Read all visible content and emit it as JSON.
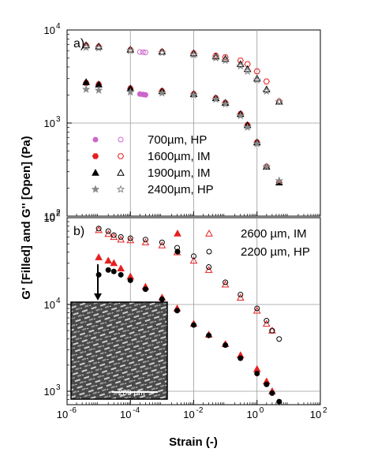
{
  "chart_data": [
    {
      "type": "scatter",
      "panel_label": "a)",
      "x_scale": "log",
      "y_scale": "log",
      "xlim": [
        1e-06,
        100
      ],
      "ylim": [
        100,
        10000
      ],
      "grid": true,
      "legend_position": "bottom-left",
      "series": [
        {
          "name": "700µm, HP",
          "color": "#cc66cc",
          "x": [
            0.0002,
            0.00025,
            0.0003
          ],
          "G_filled": [
            2050,
            2030,
            2010
          ],
          "G_open": [
            5800,
            5780,
            5750
          ]
        },
        {
          "name": "1600µm, IM",
          "color": "#e62020",
          "x": [
            4e-06,
            1e-05,
            0.0001,
            0.001,
            0.01,
            0.05,
            0.1,
            0.3,
            0.5,
            1,
            2,
            5
          ],
          "G_filled": [
            2700,
            2600,
            2350,
            2200,
            2050,
            1850,
            1650,
            1250,
            950,
            620,
            340,
            230
          ],
          "G_open": [
            6800,
            6600,
            6100,
            5800,
            5600,
            5300,
            5100,
            4700,
            4300,
            3600,
            2800,
            1700
          ]
        },
        {
          "name": "1900µm, IM",
          "color": "#000000",
          "x": [
            4e-06,
            1e-05,
            0.0001,
            0.001,
            0.01,
            0.05,
            0.1,
            0.3,
            0.5,
            1,
            2,
            5
          ],
          "G_filled": [
            2750,
            2600,
            2350,
            2200,
            2050,
            1850,
            1650,
            1250,
            950,
            620,
            340,
            230
          ],
          "G_open": [
            6850,
            6650,
            6150,
            5850,
            5600,
            5200,
            4900,
            4300,
            3800,
            3000,
            2300,
            1700
          ]
        },
        {
          "name": "2400µm, HP",
          "color": "#888888",
          "x": [
            4e-06,
            1e-05,
            0.0001,
            0.001,
            0.01,
            0.05,
            0.1,
            0.3,
            0.5,
            1,
            2,
            5
          ],
          "G_filled": [
            2300,
            2250,
            2150,
            2100,
            2000,
            1800,
            1600,
            1200,
            900,
            600,
            340,
            240
          ],
          "G_open": [
            6500,
            6400,
            6000,
            5700,
            5400,
            5000,
            4700,
            4100,
            3600,
            2900,
            2200,
            1700
          ]
        }
      ]
    },
    {
      "type": "scatter",
      "panel_label": "b)",
      "x_scale": "log",
      "y_scale": "log",
      "xlim": [
        1e-06,
        100
      ],
      "ylim": [
        700,
        100000
      ],
      "grid": true,
      "legend_position": "top-right",
      "xlabel": "Strain (-)",
      "series": [
        {
          "name": "2600 µm, IM",
          "color": "#e62020",
          "x": [
            1e-05,
            2e-05,
            3e-05,
            5e-05,
            0.0001,
            0.0003,
            0.001,
            0.003,
            0.01,
            0.03,
            0.1,
            0.3,
            1,
            2,
            3
          ],
          "G_filled": [
            35000,
            32000,
            30000,
            26000,
            21000,
            16000,
            12000,
            9000,
            6000,
            4500,
            3500,
            2600,
            1800,
            1300,
            1000
          ],
          "G_open": [
            72000,
            65000,
            60000,
            56000,
            55000,
            52000,
            48000,
            40000,
            32000,
            25000,
            17000,
            12000,
            8500,
            6000,
            5000
          ]
        },
        {
          "name": "2200 µm, HP",
          "color": "#000000",
          "x": [
            1e-05,
            2e-05,
            3e-05,
            5e-05,
            0.0001,
            0.0003,
            0.001,
            0.003,
            0.01,
            0.03,
            0.1,
            0.3,
            1,
            2,
            3,
            5
          ],
          "G_filled": [
            22000,
            25000,
            24000,
            22000,
            19000,
            15000,
            11500,
            8500,
            5800,
            4400,
            3400,
            2400,
            1600,
            1200,
            950,
            760
          ],
          "G_open": [
            75000,
            70000,
            63000,
            60000,
            58000,
            56000,
            52000,
            45000,
            36000,
            27000,
            18000,
            13000,
            9000,
            6500,
            5000,
            4000
          ]
        }
      ]
    }
  ],
  "axes": {
    "ylabel": "G' [Filled] and G'' [Open] (Pa)",
    "xlabel": "Strain (-)",
    "x_ticks": [
      "10",
      "10",
      "10",
      "10",
      "10"
    ],
    "x_tick_exps": [
      "-6",
      "-4",
      "-2",
      "0",
      "2"
    ],
    "a_y_ticks": [
      "10",
      "10",
      "10"
    ],
    "a_y_tick_exps": [
      "4",
      "3",
      "2"
    ],
    "b_y_ticks": [
      "10",
      "10",
      "10"
    ],
    "b_y_tick_exps": [
      "2",
      "4",
      "3"
    ]
  },
  "inset": {
    "scale_label": "200 µm"
  }
}
